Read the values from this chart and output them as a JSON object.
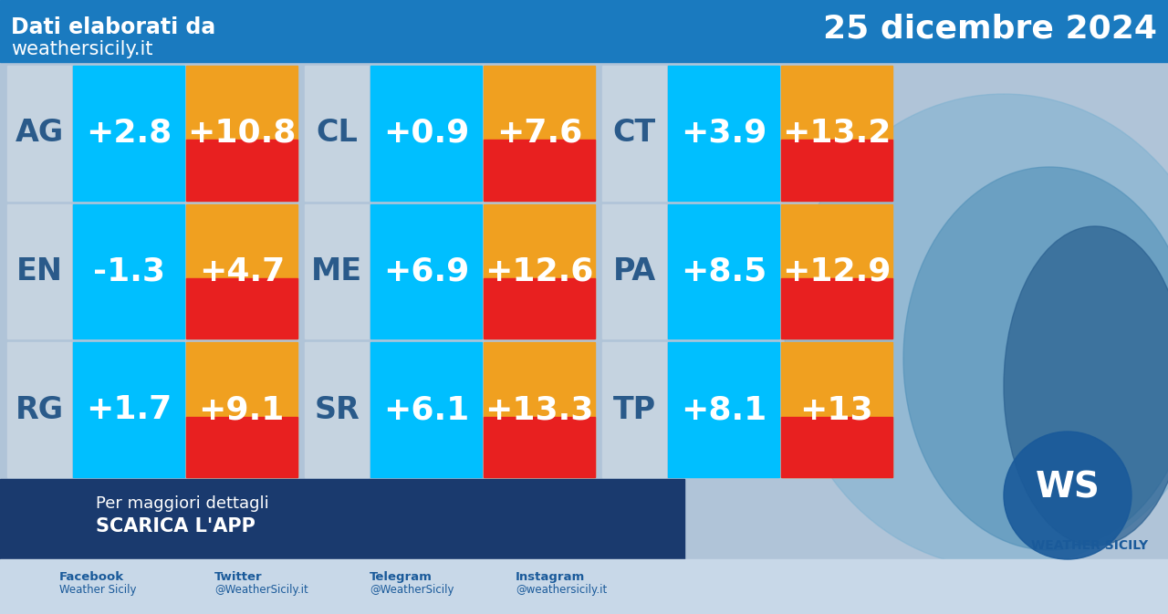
{
  "header_bg": "#1a7abf",
  "header_left_line1": "Dati elaborati da",
  "header_left_line2": "weathersicily.it",
  "header_right": "25 dicembre 2024",
  "grid_bg": "#b0c4d8",
  "provinces": [
    {
      "abbr": "AG",
      "min": "+2.8",
      "max": "+10.8"
    },
    {
      "abbr": "CL",
      "min": "+0.9",
      "max": "+7.6"
    },
    {
      "abbr": "CT",
      "min": "+3.9",
      "max": "+13.2"
    },
    {
      "abbr": "EN",
      "min": "-1.3",
      "max": "+4.7"
    },
    {
      "abbr": "ME",
      "min": "+6.9",
      "max": "+12.6"
    },
    {
      "abbr": "PA",
      "min": "+8.5",
      "max": "+12.9"
    },
    {
      "abbr": "RG",
      "min": "+1.7",
      "max": "+9.1"
    },
    {
      "abbr": "SR",
      "min": "+6.1",
      "max": "+13.3"
    },
    {
      "abbr": "TP",
      "min": "+8.1",
      "max": "+13"
    }
  ],
  "abbr_bg": "#c5d3e0",
  "min_bg": "#00bfff",
  "max_bg_orange": "#f0a020",
  "max_bg_red": "#e82020",
  "footer_bg": "#1a3a6e",
  "footer_text1": "Per maggiori dettagli",
  "footer_text2": "SCARICA L'APP",
  "social_fb": "Facebook\nWeather Sicily",
  "social_tw": "Twitter\n@WeatherSicily.it",
  "social_tg": "Telegram\n@WeatherSicily",
  "social_ig": "Instagram\n@weathersicily.it",
  "white": "#ffffff",
  "abbr_color": "#2a5a8a",
  "min_color": "#ffffff",
  "max_color": "#ffffff"
}
